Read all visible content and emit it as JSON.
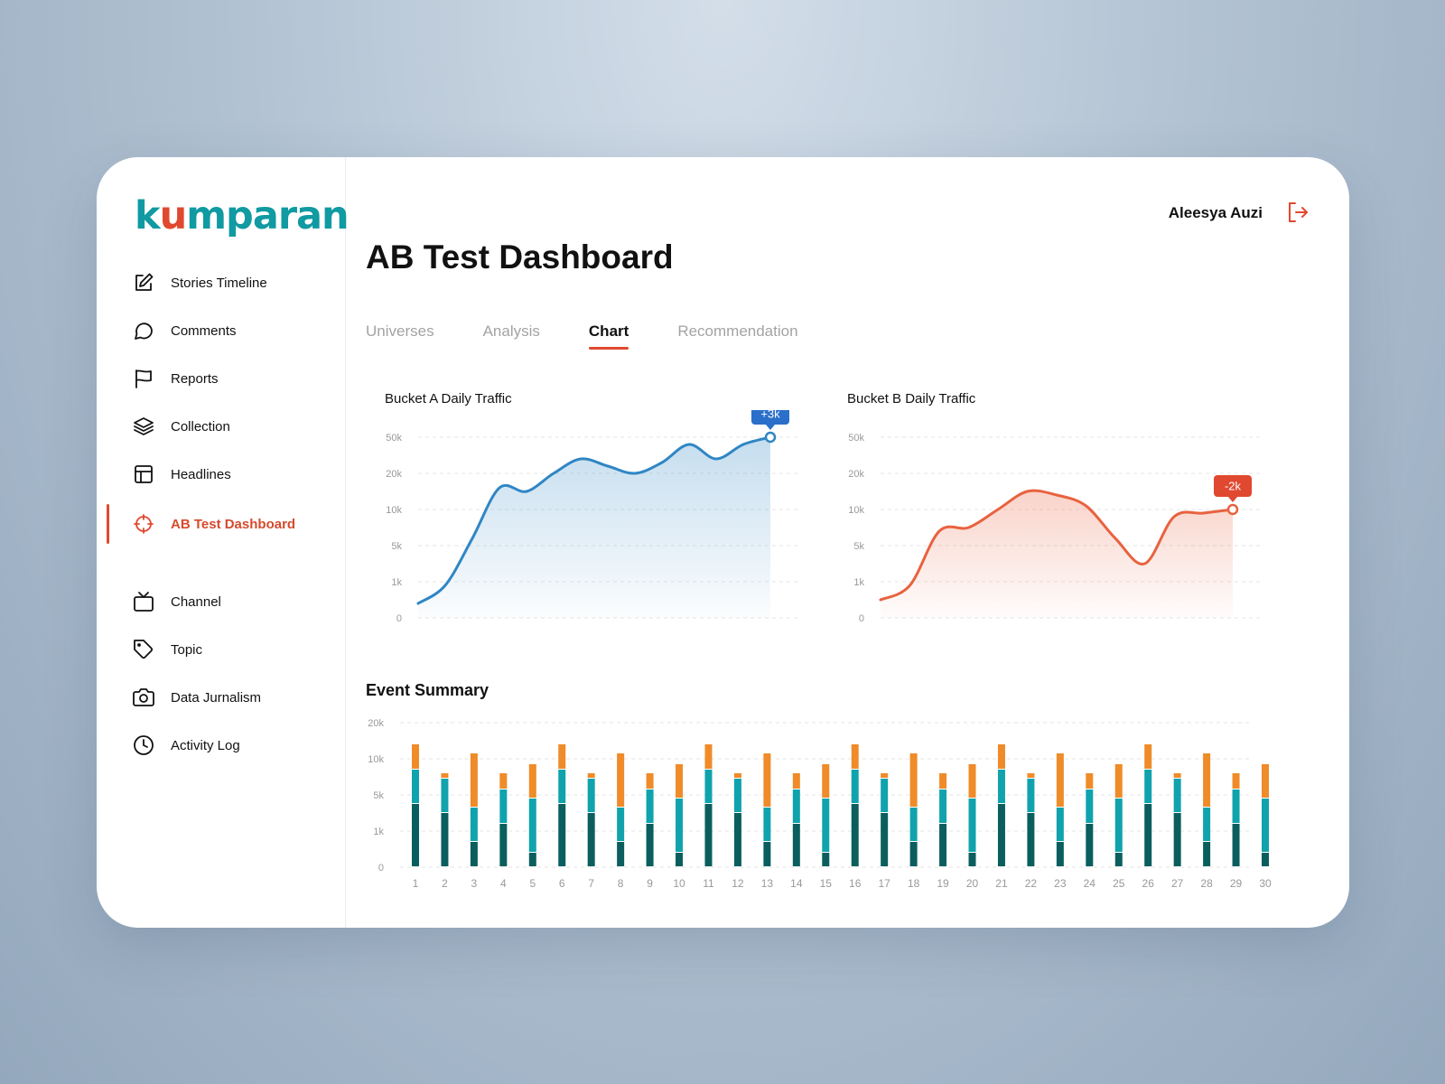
{
  "brand": {
    "logo_pre": "k",
    "logo_u": "u",
    "logo_post": "mparan",
    "color": "#109aa2",
    "accent": "#e0492f"
  },
  "user": {
    "name": "Aleesya Auzi"
  },
  "sidebar": {
    "items": [
      {
        "label": "Stories Timeline",
        "icon": "edit-icon"
      },
      {
        "label": "Comments",
        "icon": "comment-icon"
      },
      {
        "label": "Reports",
        "icon": "flag-icon"
      },
      {
        "label": "Collection",
        "icon": "layers-icon"
      },
      {
        "label": "Headlines",
        "icon": "layout-icon"
      },
      {
        "label": "AB Test Dashboard",
        "icon": "target-icon",
        "active": true
      },
      {
        "label": "Channel",
        "icon": "tv-icon"
      },
      {
        "label": "Topic",
        "icon": "tag-icon"
      },
      {
        "label": "Data Jurnalism",
        "icon": "camera-icon"
      },
      {
        "label": "Activity Log",
        "icon": "clock-icon"
      }
    ]
  },
  "page": {
    "title": "AB Test Dashboard"
  },
  "tabs": [
    {
      "label": "Universes"
    },
    {
      "label": "Analysis"
    },
    {
      "label": "Chart",
      "active": true
    },
    {
      "label": "Recommendation"
    }
  ],
  "chart_data": [
    {
      "type": "area",
      "title": "Bucket A Daily Traffic",
      "ticks": [
        "0",
        "1k",
        "5k",
        "10k",
        "20k",
        "50k"
      ],
      "y": [
        0.4,
        0.9,
        2.2,
        3.6,
        3.5,
        4.0,
        4.4,
        4.2,
        4.0,
        4.3,
        4.8,
        4.4,
        4.8,
        5.0
      ],
      "color": "#2f86c4",
      "badge": "+3k",
      "badge_color": "#2a6fc9"
    },
    {
      "type": "area",
      "title": "Bucket B Daily Traffic",
      "ticks": [
        "0",
        "1k",
        "5k",
        "10k",
        "20k",
        "50k"
      ],
      "y": [
        0.5,
        0.9,
        2.4,
        2.5,
        3.0,
        3.5,
        3.4,
        3.1,
        2.2,
        1.5,
        2.8,
        2.9,
        3.0
      ],
      "color": "#e8623f",
      "badge": "-2k",
      "badge_color": "#e0492f"
    },
    {
      "type": "bar",
      "title": "Event Summary",
      "categories": [
        "1",
        "2",
        "3",
        "4",
        "5",
        "6",
        "7",
        "8",
        "9",
        "10",
        "11",
        "12",
        "13",
        "14",
        "15",
        "16",
        "17",
        "18",
        "19",
        "20",
        "21",
        "22",
        "23",
        "24",
        "25",
        "26",
        "27",
        "28",
        "29",
        "30"
      ],
      "ticks": [
        "0",
        "1k",
        "5k",
        "10k",
        "20k"
      ],
      "series": [
        {
          "color": "#0b5e5e",
          "values": [
            1.75,
            1.5,
            0.7,
            1.2,
            0.4,
            1.75,
            1.5,
            0.7,
            1.2,
            0.4,
            1.75,
            1.5,
            0.7,
            1.2,
            0.4,
            1.75,
            1.5,
            0.7,
            1.2,
            0.4,
            1.75,
            1.5,
            0.7,
            1.2,
            0.4,
            1.75,
            1.5,
            0.7,
            1.2,
            0.4
          ]
        },
        {
          "color": "#10a3ad",
          "values": [
            0.95,
            0.95,
            0.95,
            0.95,
            1.5,
            0.95,
            0.95,
            0.95,
            0.95,
            1.5,
            0.95,
            0.95,
            0.95,
            0.95,
            1.5,
            0.95,
            0.95,
            0.95,
            0.95,
            1.5,
            0.95,
            0.95,
            0.95,
            0.95,
            1.5,
            0.95,
            0.95,
            0.95,
            0.95,
            1.5
          ]
        },
        {
          "color": "#ef8b28",
          "values": [
            0.7,
            0.15,
            1.5,
            0.45,
            0.95,
            0.7,
            0.15,
            1.5,
            0.45,
            0.95,
            0.7,
            0.15,
            1.5,
            0.45,
            0.95,
            0.7,
            0.15,
            1.5,
            0.45,
            0.95,
            0.7,
            0.15,
            1.5,
            0.45,
            0.95,
            0.7,
            0.15,
            1.5,
            0.45,
            0.95
          ]
        }
      ]
    }
  ]
}
